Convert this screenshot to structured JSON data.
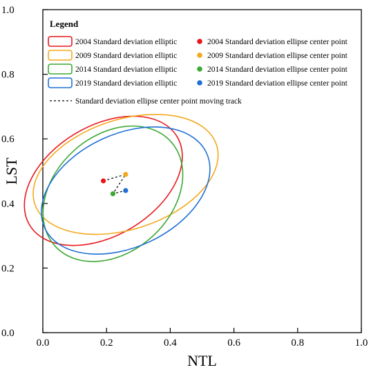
{
  "chart_data": {
    "type": "scatter",
    "title": "",
    "xlabel": "NTL",
    "ylabel": "LST",
    "xlim": [
      0.0,
      1.0
    ],
    "ylim": [
      0.0,
      1.0
    ],
    "x_ticks": [
      "0.0",
      "0.2",
      "0.4",
      "0.6",
      "0.8",
      "1.0"
    ],
    "y_ticks": [
      "0.0",
      "0.2",
      "0.4",
      "0.6",
      "0.8",
      "1.0"
    ],
    "grid": false,
    "legend": {
      "title": "Legend",
      "placement": "top-left",
      "ellipse_items": [
        {
          "label": "2004 Standard deviation elliptic",
          "color": "#e8161b"
        },
        {
          "label": "2009 Standard deviation elliptic",
          "color": "#f4a81d"
        },
        {
          "label": "2014 Standard deviation elliptic",
          "color": "#3aa831"
        },
        {
          "label": "2019 Standard deviation elliptic",
          "color": "#1f6fd6"
        }
      ],
      "point_items": [
        {
          "label": "2004 Standard deviation ellipse center point",
          "color": "#e8161b"
        },
        {
          "label": "2009 Standard deviation ellipse center point",
          "color": "#f4a81d"
        },
        {
          "label": "2014 Standard deviation ellipse center point",
          "color": "#3aa831"
        },
        {
          "label": "2019 Standard deviation ellipse center point",
          "color": "#1f6fd6"
        }
      ],
      "track_label": "Standard deviation ellipse center point moving track"
    },
    "series": [
      {
        "year": "2004",
        "color": "#e8161b",
        "center": [
          0.19,
          0.47
        ],
        "semi_major": 0.27,
        "semi_minor": 0.17,
        "rotation_deg": 31
      },
      {
        "year": "2009",
        "color": "#f4a81d",
        "center": [
          0.26,
          0.49
        ],
        "semi_major": 0.3,
        "semi_minor": 0.17,
        "rotation_deg": 18
      },
      {
        "year": "2014",
        "color": "#3aa831",
        "center": [
          0.22,
          0.43
        ],
        "semi_major": 0.245,
        "semi_minor": 0.18,
        "rotation_deg": 42
      },
      {
        "year": "2019",
        "color": "#1f6fd6",
        "center": [
          0.26,
          0.44
        ],
        "semi_major": 0.28,
        "semi_minor": 0.175,
        "rotation_deg": 25
      }
    ],
    "track": [
      [
        0.19,
        0.47
      ],
      [
        0.26,
        0.49
      ],
      [
        0.22,
        0.43
      ],
      [
        0.26,
        0.44
      ]
    ]
  }
}
